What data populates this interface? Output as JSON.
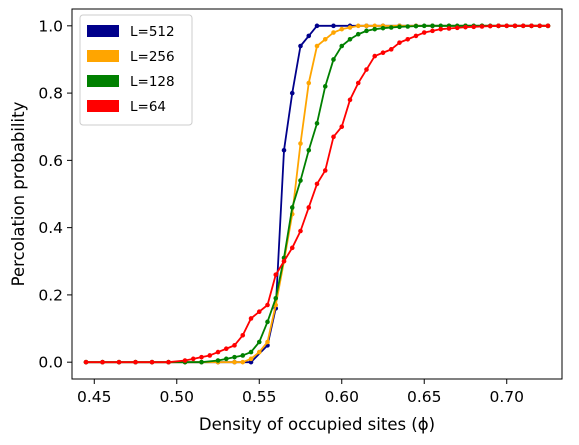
{
  "chart_data": {
    "type": "line",
    "xlabel": "Density of occupied sites (ϕ)",
    "ylabel": "Percolation probability",
    "xlim": [
      0.4365,
      0.7335
    ],
    "ylim": [
      -0.05,
      1.05
    ],
    "xticks": [
      0.45,
      0.5,
      0.55,
      0.6,
      0.65,
      0.7
    ],
    "xtick_labels": [
      "0.45",
      "0.50",
      "0.55",
      "0.60",
      "0.65",
      "0.70"
    ],
    "yticks": [
      0.0,
      0.2,
      0.4,
      0.6,
      0.8,
      1.0
    ],
    "ytick_labels": [
      "0.0",
      "0.2",
      "0.4",
      "0.6",
      "0.8",
      "1.0"
    ],
    "grid": false,
    "legend_position": "top-left",
    "series": [
      {
        "name": "L=512",
        "color": "#00008b",
        "x": [
          0.445,
          0.455,
          0.465,
          0.475,
          0.485,
          0.495,
          0.505,
          0.515,
          0.525,
          0.535,
          0.545,
          0.555,
          0.56,
          0.565,
          0.57,
          0.575,
          0.58,
          0.585,
          0.595,
          0.605,
          0.615,
          0.625,
          0.635,
          0.645,
          0.655,
          0.665,
          0.675,
          0.685,
          0.695,
          0.705,
          0.715,
          0.725
        ],
        "y": [
          0.0,
          0.0,
          0.0,
          0.0,
          0.0,
          0.0,
          0.0,
          0.0,
          0.0,
          0.0,
          0.0,
          0.05,
          0.16,
          0.63,
          0.8,
          0.94,
          0.97,
          1.0,
          1.0,
          1.0,
          1.0,
          1.0,
          1.0,
          1.0,
          1.0,
          1.0,
          1.0,
          1.0,
          1.0,
          1.0,
          1.0,
          1.0
        ]
      },
      {
        "name": "L=256",
        "color": "#ffa500",
        "x": [
          0.445,
          0.455,
          0.465,
          0.475,
          0.485,
          0.495,
          0.505,
          0.515,
          0.525,
          0.535,
          0.54,
          0.545,
          0.55,
          0.555,
          0.56,
          0.565,
          0.57,
          0.575,
          0.58,
          0.585,
          0.59,
          0.595,
          0.6,
          0.605,
          0.61,
          0.615,
          0.62,
          0.625,
          0.635,
          0.645,
          0.655,
          0.665,
          0.675,
          0.685,
          0.695,
          0.705,
          0.715,
          0.725
        ],
        "y": [
          0.0,
          0.0,
          0.0,
          0.0,
          0.0,
          0.0,
          0.0,
          0.0,
          0.0,
          0.0,
          0.0,
          0.01,
          0.03,
          0.06,
          0.17,
          0.3,
          0.44,
          0.65,
          0.83,
          0.94,
          0.96,
          0.98,
          0.99,
          0.995,
          1.0,
          1.0,
          1.0,
          1.0,
          1.0,
          1.0,
          1.0,
          1.0,
          1.0,
          1.0,
          1.0,
          1.0,
          1.0,
          1.0
        ]
      },
      {
        "name": "L=128",
        "color": "#008000",
        "x": [
          0.445,
          0.455,
          0.465,
          0.475,
          0.485,
          0.495,
          0.505,
          0.515,
          0.525,
          0.53,
          0.535,
          0.54,
          0.545,
          0.55,
          0.555,
          0.56,
          0.565,
          0.57,
          0.575,
          0.58,
          0.585,
          0.59,
          0.595,
          0.6,
          0.605,
          0.61,
          0.615,
          0.62,
          0.625,
          0.63,
          0.635,
          0.64,
          0.645,
          0.65,
          0.655,
          0.66,
          0.665,
          0.67,
          0.675,
          0.68,
          0.685,
          0.69,
          0.695,
          0.7,
          0.705,
          0.71,
          0.715,
          0.72,
          0.725
        ],
        "y": [
          0.0,
          0.0,
          0.0,
          0.0,
          0.0,
          0.0,
          0.0,
          0.0,
          0.005,
          0.01,
          0.015,
          0.02,
          0.03,
          0.06,
          0.12,
          0.19,
          0.31,
          0.46,
          0.54,
          0.63,
          0.71,
          0.82,
          0.9,
          0.94,
          0.96,
          0.975,
          0.985,
          0.99,
          0.993,
          0.995,
          0.997,
          0.998,
          0.999,
          1.0,
          1.0,
          1.0,
          1.0,
          1.0,
          1.0,
          1.0,
          1.0,
          1.0,
          1.0,
          1.0,
          1.0,
          1.0,
          1.0,
          1.0,
          1.0
        ]
      },
      {
        "name": "L=64",
        "color": "#ff0000",
        "x": [
          0.445,
          0.455,
          0.465,
          0.475,
          0.485,
          0.495,
          0.505,
          0.51,
          0.515,
          0.52,
          0.525,
          0.53,
          0.535,
          0.54,
          0.545,
          0.55,
          0.555,
          0.56,
          0.565,
          0.57,
          0.575,
          0.58,
          0.585,
          0.59,
          0.595,
          0.6,
          0.605,
          0.61,
          0.615,
          0.62,
          0.625,
          0.63,
          0.635,
          0.64,
          0.645,
          0.65,
          0.655,
          0.66,
          0.665,
          0.67,
          0.675,
          0.68,
          0.685,
          0.69,
          0.695,
          0.7,
          0.705,
          0.71,
          0.715,
          0.72,
          0.725
        ],
        "y": [
          0.0,
          0.0,
          0.0,
          0.0,
          0.0,
          0.0,
          0.005,
          0.01,
          0.015,
          0.02,
          0.03,
          0.04,
          0.05,
          0.08,
          0.13,
          0.15,
          0.17,
          0.26,
          0.3,
          0.34,
          0.39,
          0.46,
          0.53,
          0.57,
          0.67,
          0.7,
          0.78,
          0.83,
          0.87,
          0.91,
          0.92,
          0.93,
          0.95,
          0.96,
          0.97,
          0.98,
          0.985,
          0.99,
          0.992,
          0.994,
          0.996,
          0.997,
          0.998,
          0.999,
          1.0,
          1.0,
          1.0,
          1.0,
          1.0,
          1.0,
          1.0
        ]
      }
    ]
  }
}
